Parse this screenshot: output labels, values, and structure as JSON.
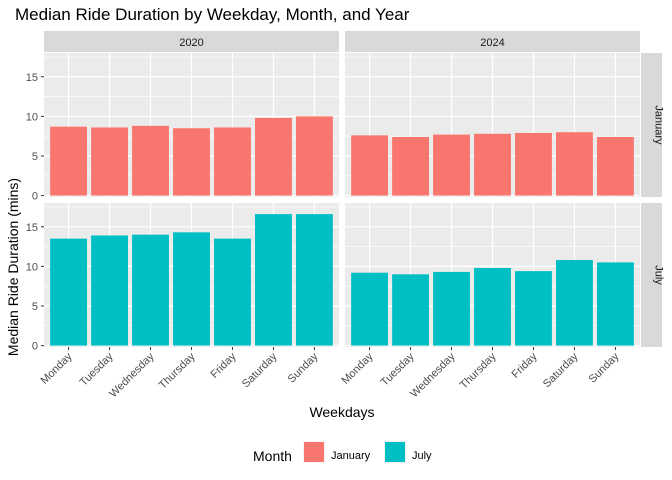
{
  "chart_data": {
    "type": "bar",
    "title": "Median Ride Duration by Weekday, Month, and Year",
    "xlabel": "Weekdays",
    "ylabel": "Median Ride Duration (mins)",
    "categories": [
      "Monday",
      "Tuesday",
      "Wednesday",
      "Thursday",
      "Friday",
      "Saturday",
      "Sunday"
    ],
    "columns": [
      "2020",
      "2024"
    ],
    "rows": [
      "January",
      "July"
    ],
    "ylim": [
      0,
      18
    ],
    "yticks": [
      0,
      5,
      10,
      15
    ],
    "grid": true,
    "legend": {
      "title": "Month",
      "position": "bottom",
      "items": [
        {
          "label": "January",
          "color": "#F8766D"
        },
        {
          "label": "July",
          "color": "#00BFC4"
        }
      ]
    },
    "panels": [
      {
        "column": "2020",
        "row": "January",
        "color": "#F8766D",
        "values": [
          8.7,
          8.6,
          8.8,
          8.5,
          8.6,
          9.8,
          10.0
        ]
      },
      {
        "column": "2024",
        "row": "January",
        "color": "#F8766D",
        "values": [
          7.6,
          7.4,
          7.7,
          7.8,
          7.9,
          8.0,
          7.4
        ]
      },
      {
        "column": "2020",
        "row": "July",
        "color": "#00BFC4",
        "values": [
          13.5,
          13.9,
          14.0,
          14.3,
          13.5,
          16.6,
          16.6
        ]
      },
      {
        "column": "2024",
        "row": "July",
        "color": "#00BFC4",
        "values": [
          9.2,
          9.0,
          9.3,
          9.8,
          9.4,
          10.8,
          10.5
        ]
      }
    ]
  }
}
